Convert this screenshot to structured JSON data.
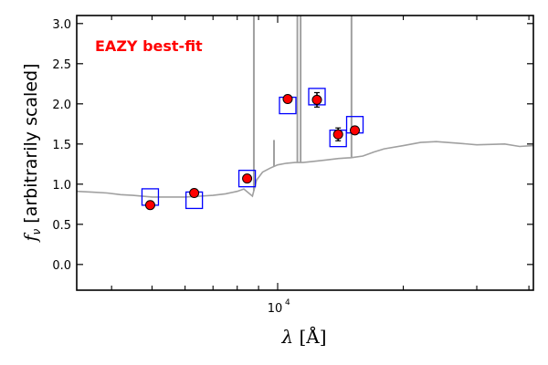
{
  "chart_data": {
    "type": "scatter",
    "title": "",
    "annotation": "EAZY best-fit",
    "annotation_color": "#ff0000",
    "xlabel": "λ [Å]",
    "xlabel_symbol": "λ",
    "xlabel_unit": "[Å]",
    "ylabel": "f_ν [arbitrarily scaled]",
    "ylabel_symbol": "f",
    "ylabel_subscript": "ν",
    "ylabel_text": "[arbitrarily scaled]",
    "x_scale": "log",
    "xlim": [
      3300,
      41000
    ],
    "ylim": [
      -0.32,
      3.1
    ],
    "x_tick_label": {
      "base": "10",
      "exponent": "4"
    },
    "y_ticks": [
      {
        "value": 0.0,
        "label": "0.0"
      },
      {
        "value": 0.5,
        "label": "0.5"
      },
      {
        "value": 1.0,
        "label": "1.0"
      },
      {
        "value": 1.5,
        "label": "1.5"
      },
      {
        "value": 2.0,
        "label": "2.0"
      },
      {
        "value": 2.5,
        "label": "2.5"
      },
      {
        "value": 3.0,
        "label": "3.0"
      }
    ],
    "grid": false,
    "colors": {
      "observed": "#ff0000",
      "observed_edge": "#000000",
      "model_points": "#0000ff",
      "template": "#a0a0a0"
    },
    "series": [
      {
        "kind": "observed",
        "points": [
          {
            "x": 4950,
            "y": 0.74,
            "err": 0.02
          },
          {
            "x": 6310,
            "y": 0.89,
            "err": 0.02
          },
          {
            "x": 8450,
            "y": 1.07,
            "err": 0.02
          },
          {
            "x": 10570,
            "y": 2.06,
            "err": 0.03
          },
          {
            "x": 12420,
            "y": 2.05,
            "err": 0.09
          },
          {
            "x": 13960,
            "y": 1.62,
            "err": 0.08
          },
          {
            "x": 15310,
            "y": 1.67,
            "err": 0.02
          }
        ]
      },
      {
        "kind": "model",
        "points": [
          {
            "x": 4950,
            "y": 0.84
          },
          {
            "x": 6310,
            "y": 0.8
          },
          {
            "x": 8450,
            "y": 1.07
          },
          {
            "x": 10570,
            "y": 1.98
          },
          {
            "x": 12420,
            "y": 2.09
          },
          {
            "x": 13960,
            "y": 1.57
          },
          {
            "x": 15310,
            "y": 1.74
          }
        ]
      },
      {
        "kind": "template",
        "continuum": [
          [
            3300,
            0.91
          ],
          [
            3600,
            0.9
          ],
          [
            3900,
            0.89
          ],
          [
            4200,
            0.87
          ],
          [
            4500,
            0.86
          ],
          [
            5000,
            0.84
          ],
          [
            5500,
            0.84
          ],
          [
            6000,
            0.84
          ],
          [
            6500,
            0.85
          ],
          [
            7000,
            0.86
          ],
          [
            7500,
            0.88
          ],
          [
            8000,
            0.91
          ],
          [
            8300,
            0.94
          ],
          [
            8700,
            0.85
          ],
          [
            8900,
            1.05
          ],
          [
            9200,
            1.15
          ],
          [
            9600,
            1.2
          ],
          [
            10000,
            1.24
          ],
          [
            10500,
            1.26
          ],
          [
            11000,
            1.27
          ],
          [
            11500,
            1.27
          ],
          [
            12000,
            1.28
          ],
          [
            13000,
            1.3
          ],
          [
            14000,
            1.32
          ],
          [
            15000,
            1.33
          ],
          [
            16000,
            1.35
          ],
          [
            17000,
            1.4
          ],
          [
            18000,
            1.44
          ],
          [
            20000,
            1.48
          ],
          [
            22000,
            1.52
          ],
          [
            24000,
            1.53
          ],
          [
            27000,
            1.51
          ],
          [
            30000,
            1.49
          ],
          [
            35000,
            1.5
          ],
          [
            38000,
            1.47
          ],
          [
            41000,
            1.48
          ]
        ],
        "emission_lines": [
          {
            "x": 8770,
            "y": 3.1
          },
          {
            "x": 9800,
            "y": 1.55
          },
          {
            "x": 11150,
            "y": 3.1
          },
          {
            "x": 11350,
            "y": 3.1
          },
          {
            "x": 15030,
            "y": 3.1
          }
        ]
      }
    ]
  }
}
